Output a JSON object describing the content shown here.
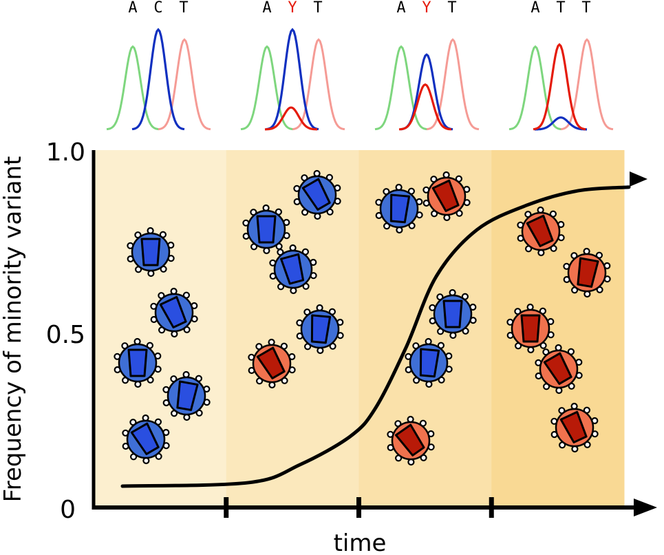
{
  "chart_data": {
    "type": "line",
    "title": "",
    "xlabel": "time",
    "ylabel": "Frequency of minority variant",
    "ylim": [
      0,
      1
    ],
    "y_ticks": [
      "0",
      "0.5",
      "1.0"
    ],
    "x_tick_count": 3,
    "grid": false,
    "series": [
      {
        "x": [
          0.0,
          0.25,
          0.35,
          0.45,
          0.5,
          0.56,
          0.62,
          0.7,
          0.8,
          0.9,
          1.0
        ],
        "y": [
          0.06,
          0.07,
          0.12,
          0.2,
          0.28,
          0.45,
          0.65,
          0.78,
          0.85,
          0.89,
          0.9
        ]
      }
    ]
  },
  "colors": {
    "wildtype_fill": "#3f6fd6",
    "wildtype_core": "#2a4fe0",
    "mutant_fill": "#f0724e",
    "mutant_core": "#b81a08",
    "peak_A": "#7ed67e",
    "peak_C": "#1030c0",
    "peak_T": "#f59b95",
    "peak_Y": "#e51b0b",
    "panel_1": "#fcefcf",
    "panel_2": "#fbe8bc",
    "panel_3": "#fae1aa",
    "panel_4": "#f9d994"
  },
  "chromatograms": [
    {
      "bases": [
        "A",
        "C",
        "T"
      ],
      "mutant_peak": 0.0,
      "wildtype_peak": 1.0
    },
    {
      "bases": [
        "A",
        "Y",
        "T"
      ],
      "mutant_peak": 0.22,
      "wildtype_peak": 1.0
    },
    {
      "bases": [
        "A",
        "Y",
        "T"
      ],
      "mutant_peak": 0.45,
      "wildtype_peak": 0.75
    },
    {
      "bases": [
        "A",
        "T",
        "T"
      ],
      "mutant_peak": 0.85,
      "wildtype_peak": 0.12
    }
  ],
  "panels": [
    {
      "viruses": [
        {
          "variant": "wildtype",
          "angle": 0
        },
        {
          "variant": "wildtype",
          "angle": -25
        },
        {
          "variant": "wildtype",
          "angle": 0
        },
        {
          "variant": "wildtype",
          "angle": 10
        },
        {
          "variant": "wildtype",
          "angle": -30
        }
      ]
    },
    {
      "viruses": [
        {
          "variant": "wildtype",
          "angle": 0
        },
        {
          "variant": "wildtype",
          "angle": -30
        },
        {
          "variant": "wildtype",
          "angle": -15
        },
        {
          "variant": "wildtype",
          "angle": 5
        },
        {
          "variant": "mutant",
          "angle": -30
        }
      ]
    },
    {
      "viruses": [
        {
          "variant": "wildtype",
          "angle": 5
        },
        {
          "variant": "mutant",
          "angle": -25
        },
        {
          "variant": "wildtype",
          "angle": 0
        },
        {
          "variant": "wildtype",
          "angle": 5
        },
        {
          "variant": "mutant",
          "angle": -35
        }
      ]
    },
    {
      "viruses": [
        {
          "variant": "mutant",
          "angle": -25
        },
        {
          "variant": "mutant",
          "angle": 10
        },
        {
          "variant": "mutant",
          "angle": 0
        },
        {
          "variant": "mutant",
          "angle": -30
        },
        {
          "variant": "mutant",
          "angle": -25
        }
      ]
    }
  ]
}
